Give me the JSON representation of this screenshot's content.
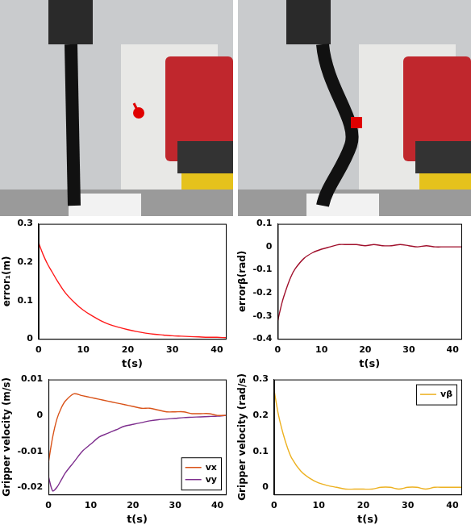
{
  "chart_data": [
    {
      "type": "line",
      "y_label": "error₁(m)",
      "x_label": "t(s)",
      "x": [
        0,
        1,
        2,
        3,
        4,
        6,
        8,
        10,
        12,
        14,
        16,
        18,
        20,
        22,
        24,
        26,
        28,
        30,
        32,
        34,
        36,
        38,
        40,
        42
      ],
      "series": [
        {
          "name": "error₁",
          "color": "#ff1a1a",
          "values": [
            0.25,
            0.22,
            0.195,
            0.175,
            0.155,
            0.12,
            0.095,
            0.075,
            0.06,
            0.047,
            0.037,
            0.03,
            0.024,
            0.019,
            0.015,
            0.012,
            0.01,
            0.008,
            0.007,
            0.006,
            0.005,
            0.004,
            0.004,
            0.003
          ]
        }
      ],
      "xlim": [
        0,
        42
      ],
      "xticks": [
        0,
        10,
        20,
        30,
        40
      ],
      "ylim": [
        0,
        0.3
      ],
      "yticks": [
        0,
        0.1,
        0.2,
        0.3
      ],
      "grid": false
    },
    {
      "type": "line",
      "y_label": "errorβ(rad)",
      "x_label": "t(s)",
      "x": [
        0,
        1,
        2,
        3,
        4,
        6,
        8,
        10,
        12,
        14,
        16,
        18,
        20,
        22,
        24,
        26,
        28,
        30,
        32,
        34,
        36,
        38,
        40,
        42
      ],
      "series": [
        {
          "name": "errorβ",
          "color": "#a0102c",
          "values": [
            -0.32,
            -0.24,
            -0.18,
            -0.13,
            -0.095,
            -0.05,
            -0.025,
            -0.01,
            0,
            0.01,
            0.01,
            0.01,
            0.005,
            0.01,
            0.005,
            0.005,
            0.01,
            0.005,
            0,
            0.005,
            0,
            0,
            0,
            0
          ]
        }
      ],
      "xlim": [
        0,
        42
      ],
      "xticks": [
        0,
        10,
        20,
        30,
        40
      ],
      "ylim": [
        -0.4,
        0.1
      ],
      "yticks": [
        -0.4,
        -0.3,
        -0.2,
        -0.1,
        0,
        0.1
      ],
      "grid": false
    },
    {
      "type": "line",
      "y_label": "Gripper velocity (m/s)",
      "x_label": "t(s)",
      "x": [
        0,
        1,
        2,
        3,
        4,
        6,
        8,
        10,
        12,
        14,
        16,
        18,
        20,
        22,
        24,
        26,
        28,
        30,
        32,
        34,
        36,
        38,
        40,
        42
      ],
      "series": [
        {
          "name": "vx",
          "color": "#d95319",
          "values": [
            -0.013,
            -0.006,
            -0.001,
            0.002,
            0.004,
            0.006,
            0.0055,
            0.005,
            0.0045,
            0.004,
            0.0035,
            0.003,
            0.0025,
            0.002,
            0.002,
            0.0015,
            0.001,
            0.001,
            0.001,
            0.0005,
            0.0005,
            0.0005,
            0,
            0
          ]
        },
        {
          "name": "vy",
          "color": "#7e2f8e",
          "values": [
            -0.017,
            -0.021,
            -0.02,
            -0.018,
            -0.016,
            -0.013,
            -0.01,
            -0.008,
            -0.006,
            -0.005,
            -0.004,
            -0.003,
            -0.0025,
            -0.002,
            -0.0015,
            -0.0012,
            -0.001,
            -0.0008,
            -0.0006,
            -0.0005,
            -0.0004,
            -0.0003,
            -0.0002,
            0
          ]
        }
      ],
      "xlim": [
        0,
        42
      ],
      "xticks": [
        0,
        10,
        20,
        30,
        40
      ],
      "ylim": [
        -0.022,
        0.01
      ],
      "yticks": [
        -0.02,
        -0.01,
        0,
        0.01
      ],
      "grid": false,
      "legend": "lower right"
    },
    {
      "type": "line",
      "y_label": "Gripper velocity (rad/s)",
      "x_label": "t(s)",
      "x": [
        0,
        1,
        2,
        3,
        4,
        6,
        8,
        10,
        12,
        14,
        16,
        18,
        20,
        22,
        24,
        26,
        28,
        30,
        32,
        34,
        36,
        38,
        40,
        42
      ],
      "series": [
        {
          "name": "vβ",
          "color": "#edb120",
          "values": [
            0.27,
            0.2,
            0.15,
            0.11,
            0.08,
            0.045,
            0.025,
            0.012,
            0.005,
            0,
            -0.005,
            -0.005,
            -0.005,
            -0.005,
            0,
            0,
            -0.005,
            0,
            0,
            -0.005,
            0,
            0,
            0,
            0
          ]
        }
      ],
      "xlim": [
        0,
        42
      ],
      "xticks": [
        0,
        10,
        20,
        30,
        40
      ],
      "ylim": [
        -0.02,
        0.3
      ],
      "yticks": [
        0,
        0.1,
        0.2,
        0.3
      ],
      "grid": false,
      "legend": "upper right"
    }
  ]
}
